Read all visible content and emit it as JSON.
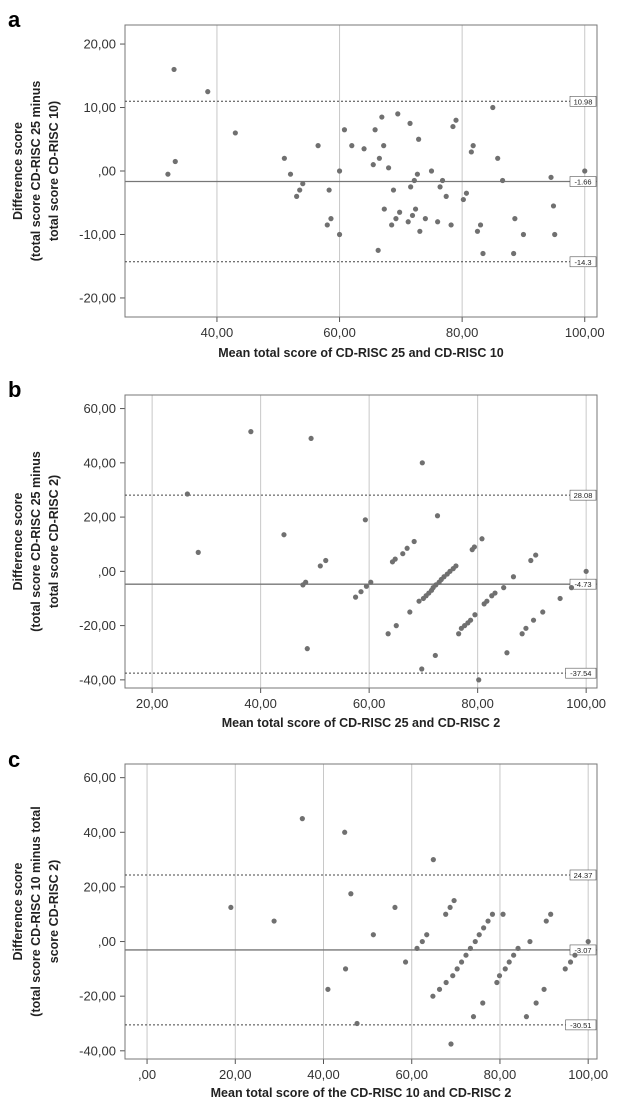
{
  "panels": [
    {
      "label": "a",
      "chart_data": {
        "type": "scatter",
        "xlabel": "Mean total score of CD-RISC 25 and CD-RISC 10",
        "ylabel": [
          "Difference score",
          "(total score CD-RISC 25 minus",
          "total score CD-RISC 10)"
        ],
        "xlim": [
          25,
          102
        ],
        "ylim": [
          -23,
          23
        ],
        "xticks": [
          40,
          60,
          80,
          100
        ],
        "xtick_labels": [
          "40,00",
          "60,00",
          "80,00",
          "100,00"
        ],
        "yticks": [
          20,
          10,
          0,
          -10,
          -20
        ],
        "ytick_labels": [
          "20,00",
          "10,00",
          ",00",
          "-10,00",
          "-20,00"
        ],
        "grid": "vertical",
        "ref_lines": [
          {
            "value": 10.98,
            "label": "10.98",
            "style": "dotted"
          },
          {
            "value": -1.66,
            "label": "-1.66",
            "style": "solid"
          },
          {
            "value": -14.3,
            "label": "-14.3",
            "style": "dotted"
          }
        ],
        "points": [
          [
            32,
            -0.5
          ],
          [
            33,
            16
          ],
          [
            33.2,
            1.5
          ],
          [
            38.5,
            12.5
          ],
          [
            43,
            6
          ],
          [
            51,
            2
          ],
          [
            52,
            -0.5
          ],
          [
            53,
            -4
          ],
          [
            53.5,
            -3
          ],
          [
            54,
            -2
          ],
          [
            56.5,
            4
          ],
          [
            58,
            -8.5
          ],
          [
            58.3,
            -3
          ],
          [
            58.6,
            -7.5
          ],
          [
            60,
            0
          ],
          [
            60,
            -10
          ],
          [
            60.8,
            6.5
          ],
          [
            62,
            4
          ],
          [
            64,
            3.5
          ],
          [
            65.5,
            1
          ],
          [
            65.8,
            6.5
          ],
          [
            66.3,
            -12.5
          ],
          [
            66.5,
            2
          ],
          [
            66.9,
            8.5
          ],
          [
            67.2,
            4
          ],
          [
            67.3,
            -6
          ],
          [
            68,
            0.5
          ],
          [
            68.5,
            -8.5
          ],
          [
            68.8,
            -3
          ],
          [
            69.2,
            -7.5
          ],
          [
            69.5,
            9
          ],
          [
            69.8,
            -6.5
          ],
          [
            71.2,
            -8
          ],
          [
            71.5,
            7.5
          ],
          [
            71.6,
            -2.5
          ],
          [
            71.9,
            -7
          ],
          [
            72.2,
            -1.5
          ],
          [
            72.4,
            -6
          ],
          [
            72.7,
            -0.5
          ],
          [
            72.9,
            5
          ],
          [
            73.1,
            -9.5
          ],
          [
            74,
            -7.5
          ],
          [
            75,
            0
          ],
          [
            76,
            -8
          ],
          [
            76.4,
            -2.5
          ],
          [
            76.8,
            -1.5
          ],
          [
            77.4,
            -4
          ],
          [
            78.2,
            -8.5
          ],
          [
            78.5,
            7
          ],
          [
            79,
            8
          ],
          [
            80.2,
            -4.5
          ],
          [
            80.7,
            -3.5
          ],
          [
            81.5,
            3
          ],
          [
            81.8,
            4
          ],
          [
            82.5,
            -9.5
          ],
          [
            83,
            -8.5
          ],
          [
            83.4,
            -13
          ],
          [
            85,
            10
          ],
          [
            85.8,
            2
          ],
          [
            86.6,
            -1.5
          ],
          [
            88.4,
            -13
          ],
          [
            88.6,
            -7.5
          ],
          [
            90,
            -10
          ],
          [
            94.5,
            -1
          ],
          [
            94.9,
            -5.5
          ],
          [
            95.1,
            -10
          ],
          [
            100,
            0
          ]
        ]
      }
    },
    {
      "label": "b",
      "chart_data": {
        "type": "scatter",
        "xlabel": "Mean total score of CD-RISC 25 and CD-RISC 2",
        "ylabel": [
          "Difference score",
          "(total score CD-RISC 25 minus",
          "total score CD-RISC 2)"
        ],
        "xlim": [
          15,
          102
        ],
        "ylim": [
          -43,
          65
        ],
        "xticks": [
          20,
          40,
          60,
          80,
          100
        ],
        "xtick_labels": [
          "20,00",
          "40,00",
          "60,00",
          "80,00",
          "100,00"
        ],
        "yticks": [
          60,
          40,
          20,
          0,
          -20,
          -40
        ],
        "ytick_labels": [
          "60,00",
          "40,00",
          "20,00",
          ",00",
          "-20,00",
          "-40,00"
        ],
        "grid": "vertical",
        "ref_lines": [
          {
            "value": 28.08,
            "label": "28.08",
            "style": "dotted"
          },
          {
            "value": -4.73,
            "label": "-4.73",
            "style": "solid"
          },
          {
            "value": -37.54,
            "label": "-37.54",
            "style": "dotted"
          }
        ],
        "points": [
          [
            26.5,
            28.5
          ],
          [
            28.5,
            7
          ],
          [
            38.2,
            51.5
          ],
          [
            44.3,
            13.5
          ],
          [
            47.8,
            -5
          ],
          [
            48.3,
            -4
          ],
          [
            48.6,
            -28.5
          ],
          [
            49.3,
            49
          ],
          [
            51,
            2
          ],
          [
            52,
            4
          ],
          [
            57.5,
            -9.5
          ],
          [
            58.5,
            -7.5
          ],
          [
            59.3,
            19
          ],
          [
            59.5,
            -5.5
          ],
          [
            60.3,
            -4
          ],
          [
            63.5,
            -23
          ],
          [
            64.3,
            3.5
          ],
          [
            64.8,
            4.5
          ],
          [
            65,
            -20
          ],
          [
            66.2,
            6.5
          ],
          [
            67,
            8.5
          ],
          [
            67.5,
            -15
          ],
          [
            68.3,
            11
          ],
          [
            69.2,
            -11
          ],
          [
            69.7,
            -36
          ],
          [
            69.8,
            40
          ],
          [
            70,
            -10
          ],
          [
            70.5,
            -9
          ],
          [
            71,
            -8
          ],
          [
            71.5,
            -7
          ],
          [
            71.8,
            -6
          ],
          [
            72.2,
            -31
          ],
          [
            72.3,
            -5
          ],
          [
            72.6,
            20.5
          ],
          [
            72.9,
            -4
          ],
          [
            73.3,
            -3
          ],
          [
            73.8,
            -2
          ],
          [
            74.4,
            -1
          ],
          [
            74.9,
            0
          ],
          [
            75.5,
            1
          ],
          [
            76,
            2
          ],
          [
            76.5,
            -23
          ],
          [
            77,
            -21
          ],
          [
            77.6,
            -20
          ],
          [
            78.2,
            -19
          ],
          [
            78.7,
            -18
          ],
          [
            79,
            8
          ],
          [
            79.4,
            9
          ],
          [
            79.5,
            -16
          ],
          [
            80.2,
            -40
          ],
          [
            80.8,
            12
          ],
          [
            81.2,
            -12
          ],
          [
            81.7,
            -11
          ],
          [
            82.6,
            -9
          ],
          [
            83.2,
            -8
          ],
          [
            84.8,
            -6
          ],
          [
            85.4,
            -30
          ],
          [
            86.6,
            -2
          ],
          [
            88.2,
            -23
          ],
          [
            88.9,
            -21
          ],
          [
            89.8,
            4
          ],
          [
            90.3,
            -18
          ],
          [
            90.7,
            6
          ],
          [
            92,
            -15
          ],
          [
            95.2,
            -10
          ],
          [
            97.3,
            -6
          ],
          [
            100,
            0
          ]
        ]
      }
    },
    {
      "label": "c",
      "chart_data": {
        "type": "scatter",
        "xlabel": "Mean total score of the CD-RISC 10 and CD-RISC 2",
        "ylabel": [
          "Difference score",
          "(total score CD-RISC 10 minus total",
          "score CD-RISC 2)"
        ],
        "xlim": [
          -5,
          102
        ],
        "ylim": [
          -43,
          65
        ],
        "xticks": [
          0,
          20,
          40,
          60,
          80,
          100
        ],
        "xtick_labels": [
          ",00",
          "20,00",
          "40,00",
          "60,00",
          "80,00",
          "100,00"
        ],
        "yticks": [
          60,
          40,
          20,
          0,
          -20,
          -40
        ],
        "ytick_labels": [
          "60,00",
          "40,00",
          "20,00",
          ",00",
          "-20,00",
          "-40,00"
        ],
        "grid": "vertical",
        "ref_lines": [
          {
            "value": 24.37,
            "label": "24.37",
            "style": "dotted"
          },
          {
            "value": -3.07,
            "label": "-3.07",
            "style": "solid"
          },
          {
            "value": -30.51,
            "label": "-30.51",
            "style": "dotted"
          }
        ],
        "points": [
          [
            19,
            12.5
          ],
          [
            28.8,
            7.5
          ],
          [
            35.2,
            45
          ],
          [
            41,
            -17.5
          ],
          [
            44.8,
            40
          ],
          [
            45,
            -10
          ],
          [
            46.2,
            17.5
          ],
          [
            47.6,
            -30
          ],
          [
            51.3,
            2.5
          ],
          [
            56.2,
            12.5
          ],
          [
            58.6,
            -7.5
          ],
          [
            61.2,
            -2.5
          ],
          [
            62.4,
            0
          ],
          [
            63.4,
            2.5
          ],
          [
            64.8,
            -20
          ],
          [
            64.9,
            30
          ],
          [
            66.3,
            -17.5
          ],
          [
            67.7,
            10
          ],
          [
            67.8,
            -15
          ],
          [
            68.7,
            12.5
          ],
          [
            68.9,
            -37.5
          ],
          [
            69.3,
            -12.5
          ],
          [
            69.6,
            15
          ],
          [
            70.3,
            -10
          ],
          [
            71.3,
            -7.5
          ],
          [
            72.3,
            -5
          ],
          [
            73.3,
            -2.5
          ],
          [
            74,
            -27.5
          ],
          [
            74.4,
            0
          ],
          [
            75.3,
            2.5
          ],
          [
            76.1,
            -22.5
          ],
          [
            76.3,
            5
          ],
          [
            77.3,
            7.5
          ],
          [
            78.3,
            10
          ],
          [
            79.3,
            -15
          ],
          [
            79.9,
            -12.5
          ],
          [
            80.7,
            10
          ],
          [
            81.2,
            -10
          ],
          [
            82.1,
            -7.5
          ],
          [
            83.1,
            -5
          ],
          [
            84.1,
            -2.5
          ],
          [
            86,
            -27.5
          ],
          [
            86.8,
            0
          ],
          [
            88.2,
            -22.5
          ],
          [
            90,
            -17.5
          ],
          [
            90.5,
            7.5
          ],
          [
            91.5,
            10
          ],
          [
            94.8,
            -10
          ],
          [
            96,
            -7.5
          ],
          [
            97,
            -5
          ],
          [
            100,
            0
          ]
        ]
      }
    }
  ]
}
